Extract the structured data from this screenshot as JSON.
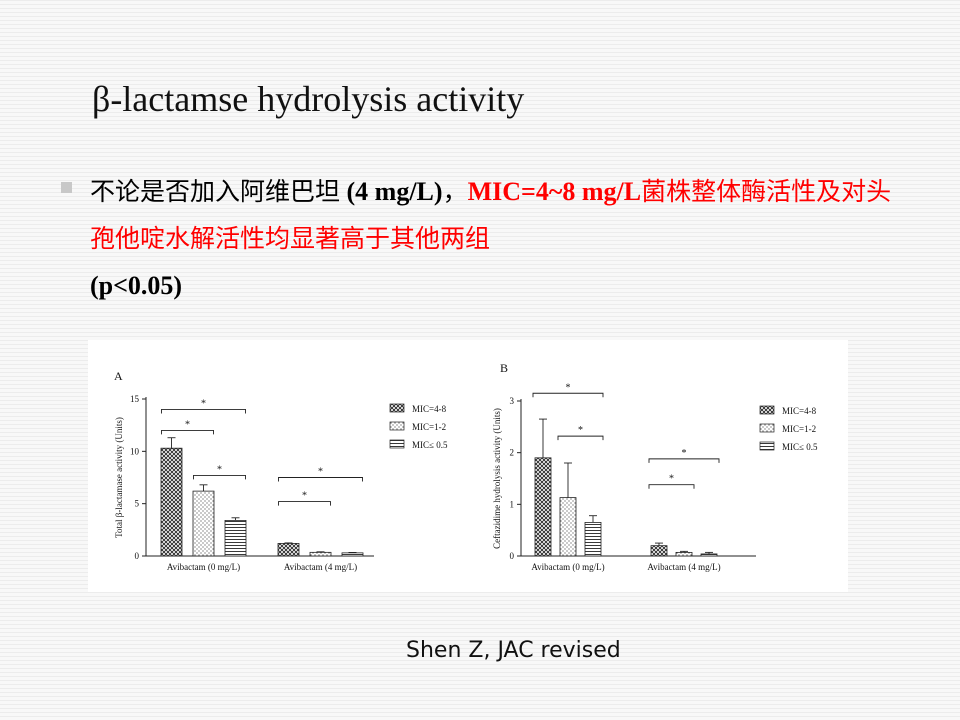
{
  "slide": {
    "title": "β-lactamse hydrolysis activity",
    "bullet": {
      "text_part1": "不论是否加入阿维巴坦",
      "text_part2": " (4 mg/L)",
      "text_part3": "，",
      "red_part1": "MIC=4~8 mg/L",
      "red_part2": "菌株整体酶活性及对头孢他啶水解活性均显著高于其他两组",
      "text_part4": "(p<0.05)"
    },
    "citation": "Shen Z, JAC revised"
  },
  "chart_data": [
    {
      "type": "bar",
      "panel_label": "A",
      "ylabel": "Total β-lactamase activity (Units)",
      "ylim": [
        0,
        15
      ],
      "yticks": [
        "0",
        "5",
        "10",
        "15"
      ],
      "categories": [
        "Avibactam (0 mg/L)",
        "Avibactam (4 mg/L)"
      ],
      "series": [
        {
          "name": "MIC=4-8",
          "pattern": "crosshatch",
          "values": [
            10.3,
            1.2
          ],
          "errors": [
            1.0,
            0.05
          ]
        },
        {
          "name": "MIC=1-2",
          "pattern": "dots",
          "values": [
            6.2,
            0.35
          ],
          "errors": [
            0.6,
            0.05
          ]
        },
        {
          "name": "MIC≤ 0.5",
          "pattern": "horizontal",
          "values": [
            3.4,
            0.3
          ],
          "errors": [
            0.25,
            0.04
          ]
        }
      ],
      "significance": [
        {
          "from": [
            0,
            0
          ],
          "to": [
            0,
            2
          ],
          "label": "*",
          "y": 14.0
        },
        {
          "from": [
            0,
            0
          ],
          "to": [
            0,
            1
          ],
          "label": "*",
          "y": 12.0
        },
        {
          "from": [
            0,
            1
          ],
          "to": [
            0,
            2
          ],
          "label": "*",
          "y": 7.7
        },
        {
          "from": [
            1,
            0
          ],
          "to": [
            1,
            2
          ],
          "label": "*",
          "y": 7.5
        },
        {
          "from": [
            1,
            0
          ],
          "to": [
            1,
            1
          ],
          "label": "*",
          "y": 5.2
        }
      ],
      "legend_position": "right"
    },
    {
      "type": "bar",
      "panel_label": "B",
      "ylabel": "Ceftazidime hydrolysis activity (Units)",
      "ylim": [
        0,
        3
      ],
      "yticks": [
        "0",
        "1",
        "2",
        "3"
      ],
      "categories": [
        "Avibactam (0 mg/L)",
        "Avibactam (4 mg/L)"
      ],
      "series": [
        {
          "name": "MIC=4-8",
          "pattern": "crosshatch",
          "values": [
            1.9,
            0.2
          ],
          "errors": [
            0.75,
            0.05
          ]
        },
        {
          "name": "MIC=1-2",
          "pattern": "dots",
          "values": [
            1.13,
            0.07
          ],
          "errors": [
            0.67,
            0.02
          ]
        },
        {
          "name": "MIC≤ 0.5",
          "pattern": "horizontal",
          "values": [
            0.65,
            0.04
          ],
          "errors": [
            0.13,
            0.03
          ]
        }
      ],
      "significance": [
        {
          "from": [
            0,
            0
          ],
          "to": [
            0,
            2
          ],
          "label": "*",
          "y": 3.15
        },
        {
          "from": [
            0,
            1
          ],
          "to": [
            0,
            2
          ],
          "label": "*",
          "y": 2.32
        },
        {
          "from": [
            1,
            0
          ],
          "to": [
            1,
            2
          ],
          "label": "*",
          "y": 1.88
        },
        {
          "from": [
            1,
            0
          ],
          "to": [
            1,
            1
          ],
          "label": "*",
          "y": 1.38
        }
      ],
      "legend_position": "right"
    }
  ]
}
